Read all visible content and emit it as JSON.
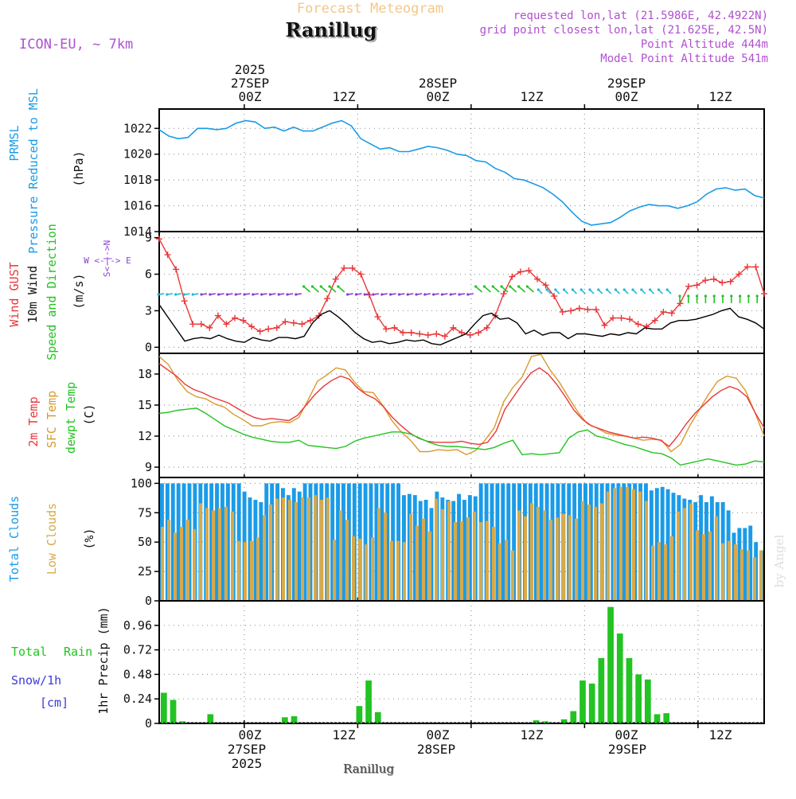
{
  "header": {
    "subtitle": "Forecast Meteogram",
    "location": "Ranillug",
    "model": "ICON-EU, ~ 7km",
    "requested": "requested lon,lat (21.5986E, 42.4922N)",
    "gridpoint": "grid point closest lon,lat (21.625E, 42.5N)",
    "point_alt": "Point Altitude 444m",
    "model_alt": "Model Point Altitude 541m",
    "footer_location": "Ranillug",
    "credit": "by Angel"
  },
  "colors": {
    "pressure": "#1a9be8",
    "gust": "#e8383a",
    "wind": "#000000",
    "arrows_green": "#22c322",
    "arrows_purple": "#8a3fd6",
    "arrows_cyan": "#22b8d8",
    "temp": "#e8383a",
    "sfc": "#d89a2c",
    "dew": "#22c322",
    "total_clouds": "#1a9be8",
    "low_clouds": "#d8a94a",
    "rain": "#22c322",
    "snow": "#3b3bd8",
    "header_orange": "#f2c88a",
    "header_purple": "#b050d0"
  },
  "time_axis": {
    "top_year": "2025",
    "top_dates": [
      "27SEP",
      "28SEP",
      "29SEP"
    ],
    "ticks": [
      "00Z",
      "12Z",
      "00Z",
      "12Z",
      "00Z",
      "12Z"
    ],
    "bottom_dates": [
      "27SEP",
      "28SEP",
      "29SEP"
    ],
    "bottom_year": "2025"
  },
  "panel_labels": {
    "pressure": [
      "PRMSL",
      "Pressure Reduced to MSL",
      "(hPa)"
    ],
    "wind": [
      "Wind GUST",
      "10m Wind",
      "Speed and Direction",
      "(m/s)"
    ],
    "compass": "W <-|-> E",
    "compass_v": "S<-|->N",
    "temp": [
      "2m Temp",
      "SFC Temp",
      "dewpt Temp",
      "(C)"
    ],
    "clouds": [
      "Total Clouds",
      "Low Clouds",
      "(%)"
    ],
    "precip": [
      "Total",
      "Rain",
      "Snow/1h",
      "[cm]",
      "1hr Precip (mm)"
    ]
  },
  "chart_data": [
    {
      "type": "line",
      "title": "PRMSL Pressure Reduced to MSL",
      "ylabel": "(hPa)",
      "ylim": [
        1014,
        1023.5
      ],
      "yticks": [
        "1014",
        "1016",
        "1018",
        "1020",
        "1022"
      ],
      "x_hours": "-9 to 54 step 1 (hours from 27SEP 00Z)",
      "series": [
        {
          "name": "PRMSL",
          "values": [
            1021.9,
            1021.4,
            1021.2,
            1021.3,
            1022.0,
            1022.0,
            1021.9,
            1022.0,
            1022.4,
            1022.6,
            1022.5,
            1022.0,
            1022.1,
            1021.8,
            1022.1,
            1021.8,
            1021.8,
            1022.1,
            1022.4,
            1022.6,
            1022.2,
            1021.2,
            1020.8,
            1020.4,
            1020.5,
            1020.2,
            1020.2,
            1020.4,
            1020.6,
            1020.5,
            1020.3,
            1020.0,
            1019.9,
            1019.5,
            1019.4,
            1018.9,
            1018.6,
            1018.1,
            1018.0,
            1017.7,
            1017.4,
            1016.9,
            1016.3,
            1015.5,
            1014.8,
            1014.5,
            1014.6,
            1014.7,
            1015.1,
            1015.6,
            1015.9,
            1016.1,
            1016.0,
            1016.0,
            1015.8,
            1016.0,
            1016.3,
            1016.9,
            1017.3,
            1017.4,
            1017.2,
            1017.3,
            1016.8,
            1016.6
          ]
        }
      ]
    },
    {
      "type": "line",
      "title": "Wind GUST / 10m Wind Speed and Direction",
      "ylabel": "(m/s)",
      "ylim": [
        -0.5,
        9.5
      ],
      "yticks": [
        "0",
        "3",
        "6",
        "9"
      ],
      "x_hours": "-9 to 54 step 1",
      "series": [
        {
          "name": "Wind GUST",
          "values": [
            8.9,
            7.6,
            6.4,
            3.8,
            1.9,
            1.9,
            1.6,
            2.6,
            1.9,
            2.4,
            2.2,
            1.7,
            1.3,
            1.5,
            1.6,
            2.1,
            2.0,
            1.9,
            2.2,
            2.6,
            4.0,
            5.6,
            6.5,
            6.5,
            6.0,
            4.3,
            2.5,
            1.5,
            1.6,
            1.2,
            1.2,
            1.1,
            1.0,
            1.1,
            0.9,
            1.6,
            1.2,
            1.0,
            1.2,
            1.6,
            2.6,
            4.4,
            5.8,
            6.2,
            6.3,
            5.6,
            5.1,
            4.2,
            2.9,
            3.0,
            3.2,
            3.1,
            3.1,
            1.8,
            2.4,
            2.4,
            2.3,
            1.9,
            1.7,
            2.2,
            2.9,
            2.8,
            3.6,
            5.0,
            5.1,
            5.5,
            5.6,
            5.3,
            5.4,
            6.0,
            6.6,
            6.6,
            4.4
          ]
        },
        {
          "name": "10m Wind",
          "values": [
            3.5,
            2.5,
            1.5,
            0.5,
            0.7,
            0.8,
            0.7,
            1.0,
            0.7,
            0.5,
            0.4,
            0.8,
            0.6,
            0.5,
            0.8,
            0.8,
            0.7,
            0.9,
            2.0,
            2.7,
            3.0,
            2.5,
            1.9,
            1.2,
            0.7,
            0.4,
            0.5,
            0.3,
            0.4,
            0.6,
            0.5,
            0.6,
            0.3,
            0.2,
            0.5,
            0.8,
            1.1,
            1.9,
            2.6,
            2.8,
            2.3,
            2.4,
            2.0,
            1.1,
            1.4,
            1.0,
            1.2,
            1.2,
            0.7,
            1.1,
            1.1,
            1.0,
            0.9,
            1.1,
            1.0,
            1.2,
            1.1,
            1.6,
            1.5,
            1.5,
            2.0,
            2.2,
            2.2,
            2.3,
            2.5,
            2.7,
            3.0,
            3.2,
            2.5,
            2.3,
            2.0,
            1.5
          ]
        }
      ]
    },
    {
      "type": "line",
      "title": "2m Temp / SFC Temp / dewpt Temp",
      "ylabel": "(C)",
      "ylim": [
        8,
        20
      ],
      "yticks": [
        "9",
        "12",
        "15",
        "18"
      ],
      "x_hours": "-9 to 54 step 1",
      "series": [
        {
          "name": "2m Temp",
          "values": [
            19.0,
            18.4,
            17.8,
            17.0,
            16.5,
            16.2,
            15.8,
            15.5,
            15.2,
            14.7,
            14.2,
            13.8,
            13.6,
            13.7,
            13.6,
            13.5,
            14.0,
            15.0,
            16.0,
            16.8,
            17.4,
            17.8,
            17.5,
            16.6,
            16.0,
            15.6,
            14.8,
            13.8,
            13.0,
            12.3,
            11.8,
            11.5,
            11.4,
            11.4,
            11.4,
            11.5,
            11.3,
            11.2,
            11.4,
            12.5,
            14.6,
            15.8,
            17.0,
            18.1,
            18.6,
            18.0,
            17.0,
            15.8,
            14.5,
            13.6,
            13.0,
            12.7,
            12.4,
            12.2,
            12.0,
            11.8,
            11.9,
            11.8,
            11.6,
            11.0,
            12.0,
            13.2,
            14.2,
            15.0,
            15.8,
            16.4,
            16.8,
            16.5,
            15.8,
            14.2,
            12.8
          ]
        },
        {
          "name": "SFC Temp",
          "values": [
            19.7,
            18.9,
            17.4,
            16.3,
            15.8,
            15.6,
            15.1,
            14.8,
            14.1,
            13.6,
            13.0,
            13.0,
            13.3,
            13.4,
            13.3,
            13.8,
            15.5,
            17.3,
            17.9,
            18.6,
            18.4,
            17.2,
            16.3,
            16.2,
            15.0,
            13.5,
            12.4,
            11.6,
            10.5,
            10.5,
            10.7,
            10.6,
            10.7,
            10.2,
            10.6,
            11.6,
            12.8,
            15.3,
            16.7,
            17.7,
            19.7,
            19.9,
            18.4,
            17.2,
            15.7,
            14.3,
            13.2,
            12.8,
            12.3,
            12.1,
            12.0,
            11.8,
            11.6,
            11.7,
            11.6,
            10.5,
            11.2,
            13.0,
            14.5,
            16.0,
            17.3,
            17.8,
            17.6,
            16.4,
            14.3,
            12.0
          ]
        },
        {
          "name": "dewpt Temp",
          "values": [
            14.2,
            14.3,
            14.5,
            14.6,
            14.7,
            14.2,
            13.6,
            13.0,
            12.6,
            12.2,
            11.9,
            11.7,
            11.5,
            11.4,
            11.4,
            11.6,
            11.1,
            11.0,
            10.9,
            10.8,
            11.0,
            11.5,
            11.8,
            12.0,
            12.2,
            12.4,
            12.4,
            12.2,
            11.8,
            11.4,
            11.1,
            11.0,
            11.0,
            10.9,
            10.8,
            10.7,
            10.9,
            11.3,
            11.6,
            10.2,
            10.3,
            10.2,
            10.3,
            10.4,
            11.8,
            12.4,
            12.6,
            12.0,
            11.8,
            11.5,
            11.2,
            11.0,
            10.7,
            10.4,
            10.3,
            9.9,
            9.2,
            9.4,
            9.6,
            9.8,
            9.6,
            9.4,
            9.2,
            9.3,
            9.6,
            9.5
          ]
        }
      ]
    },
    {
      "type": "bar",
      "title": "Total Clouds / Low Clouds",
      "ylabel": "(%)",
      "ylim": [
        0,
        105
      ],
      "yticks": [
        "0",
        "25",
        "50",
        "75",
        "100"
      ],
      "x_hours": "-9 to 54 step 1",
      "series": [
        {
          "name": "Total Clouds",
          "values": [
            100,
            100,
            100,
            100,
            100,
            100,
            100,
            100,
            100,
            100,
            100,
            100,
            100,
            100,
            100,
            93,
            88,
            86,
            84,
            100,
            100,
            100,
            96,
            90,
            96,
            93,
            100,
            100,
            100,
            100,
            100,
            100,
            100,
            100,
            100,
            100,
            100,
            100,
            100,
            100,
            100,
            100,
            100,
            100,
            90,
            91,
            90,
            85,
            86,
            79,
            93,
            88,
            86,
            85,
            91,
            86,
            90,
            89,
            100,
            100,
            100,
            100,
            100,
            100,
            100,
            100,
            100,
            100,
            100,
            100,
            100,
            100,
            100,
            100,
            100,
            100,
            100,
            100,
            100,
            100,
            100,
            100,
            100,
            100,
            100,
            100,
            100,
            100,
            100,
            94,
            96,
            97,
            95,
            92,
            90,
            87,
            86,
            84,
            90,
            84,
            89,
            84,
            84,
            77,
            58,
            62,
            62,
            64,
            50,
            43
          ]
        },
        {
          "name": "Low Clouds",
          "values": [
            63,
            69,
            58,
            63,
            69,
            61,
            83,
            79,
            77,
            79,
            80,
            76,
            51,
            50,
            51,
            54,
            73,
            82,
            87,
            88,
            86,
            84,
            88,
            88,
            90,
            86,
            88,
            52,
            77,
            69,
            55,
            53,
            48,
            54,
            79,
            75,
            51,
            51,
            50,
            74,
            64,
            70,
            59,
            87,
            78,
            85,
            67,
            68,
            71,
            76,
            67,
            68,
            63,
            49,
            52,
            43,
            77,
            72,
            83,
            80,
            77,
            69,
            71,
            74,
            73,
            70,
            85,
            82,
            80,
            83,
            93,
            96,
            97,
            97,
            95,
            93,
            85,
            47,
            50,
            48,
            55,
            76,
            79,
            83,
            60,
            57,
            59,
            72,
            49,
            51,
            48,
            44,
            43,
            37,
            43
          ]
        }
      ]
    },
    {
      "type": "bar",
      "title": "Total Rain 1hr Precip",
      "ylabel": "1hr Precip (mm)",
      "ylim": [
        0,
        1.2
      ],
      "yticks": [
        "0",
        "0.24",
        "0.48",
        "0.72",
        "0.96"
      ],
      "x_hours": "-9 to 54 step 1",
      "series": [
        {
          "name": "Total Rain",
          "values": [
            0.3,
            0.23,
            0.02,
            0,
            0,
            0.09,
            0,
            0,
            0,
            0,
            0,
            0,
            0,
            0.06,
            0.07,
            0,
            0,
            0,
            0,
            0,
            0,
            0.17,
            0.42,
            0.11,
            0,
            0,
            0,
            0,
            0,
            0,
            0,
            0,
            0,
            0,
            0,
            0,
            0,
            0,
            0,
            0,
            0.03,
            0.02,
            0,
            0.04,
            0.12,
            0.42,
            0.39,
            0.64,
            1.14,
            0.88,
            0.64,
            0.48,
            0.43,
            0.09,
            0.1,
            0,
            0,
            0,
            0,
            0,
            0,
            0,
            0,
            0,
            0
          ]
        }
      ]
    }
  ]
}
